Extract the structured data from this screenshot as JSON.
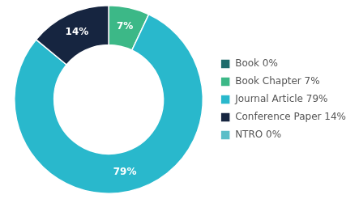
{
  "chart_data": {
    "type": "doughnut",
    "categories": [
      "Book 0%",
      "Book Chapter 7%",
      "Journal Article 79%",
      "Conference Paper 14%",
      "NTRO 0%"
    ],
    "values": [
      0,
      7,
      79,
      14,
      0
    ],
    "colors": [
      "#1e6b6b",
      "#3cb887",
      "#29b8cc",
      "#162540",
      "#5bbec8"
    ],
    "value_labels": [
      null,
      "7%",
      "79%",
      "14%",
      null
    ],
    "data_labels": true,
    "legend": "right"
  }
}
